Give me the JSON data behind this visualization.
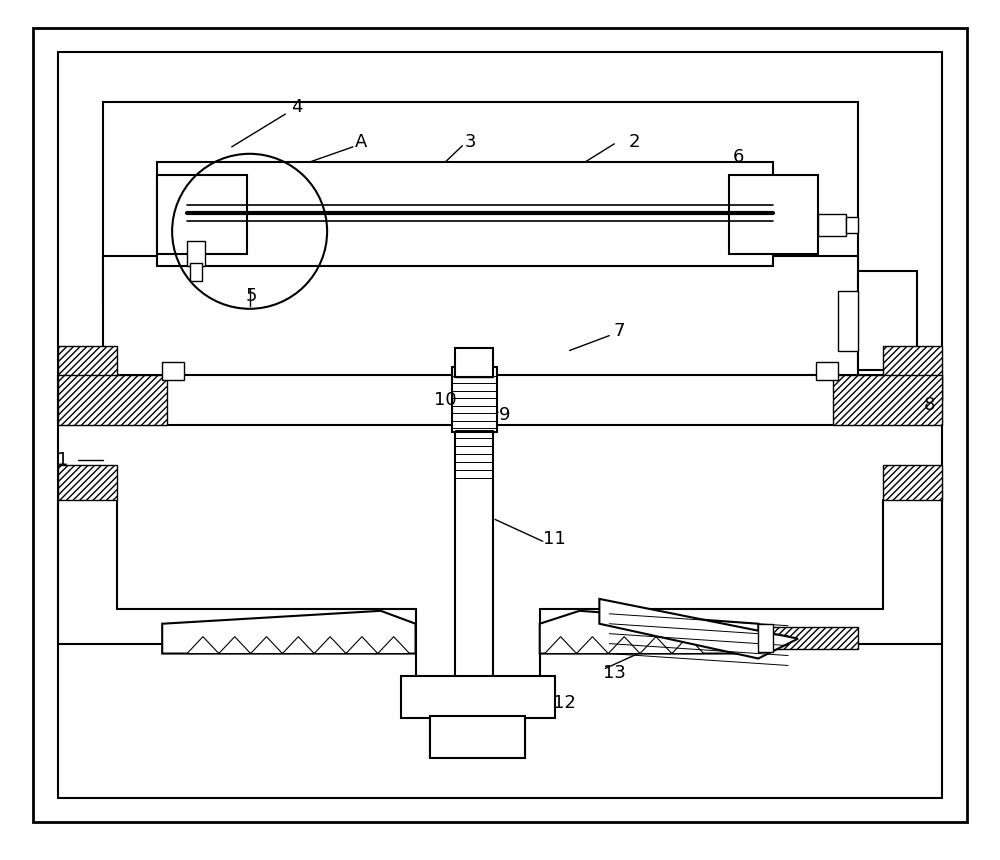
{
  "bg_color": "#ffffff",
  "line_color": "#000000",
  "fig_width": 10.0,
  "fig_height": 8.6,
  "dpi": 100
}
